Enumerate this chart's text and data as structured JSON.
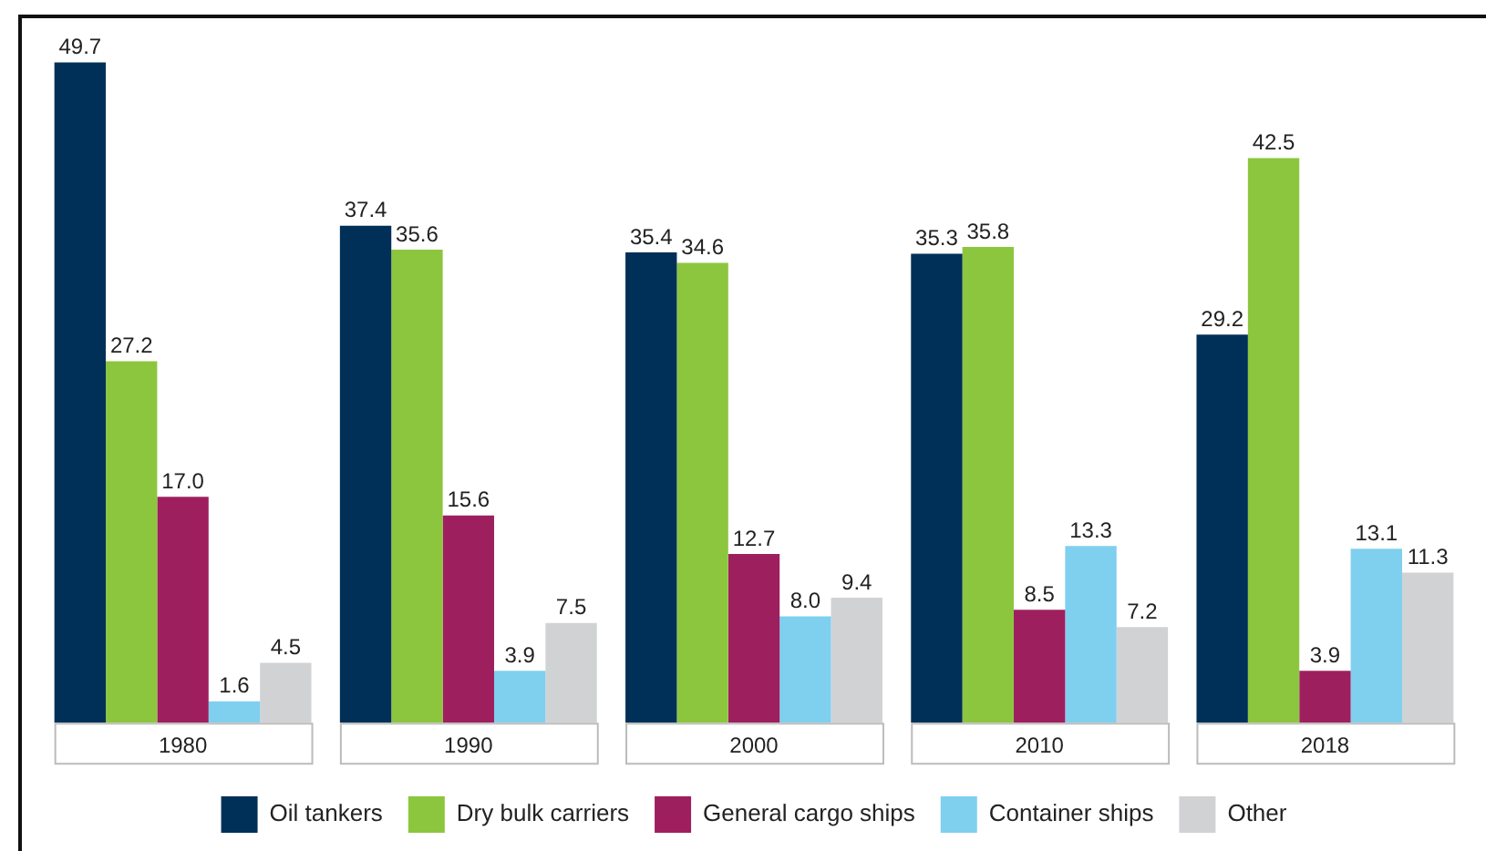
{
  "chart_data": {
    "type": "bar",
    "categories": [
      "1980",
      "1990",
      "2000",
      "2010",
      "2018"
    ],
    "series": [
      {
        "name": "Oil tankers",
        "color": "#003057",
        "values": [
          49.7,
          37.4,
          35.4,
          35.3,
          29.2
        ],
        "value_labels": [
          "49.7",
          "37.4",
          "35.4",
          "35.3",
          "29.2"
        ]
      },
      {
        "name": "Dry bulk carriers",
        "color": "#8cc63f",
        "values": [
          27.2,
          35.6,
          34.6,
          35.8,
          42.5
        ],
        "value_labels": [
          "27.2",
          "35.6",
          "34.6",
          "35.8",
          "42.5"
        ]
      },
      {
        "name": "General cargo ships",
        "color": "#9e1f5e",
        "values": [
          17.0,
          15.6,
          12.7,
          8.5,
          3.9
        ],
        "value_labels": [
          "17.0",
          "15.6",
          "12.7",
          "8.5",
          "3.9"
        ]
      },
      {
        "name": "Container ships",
        "color": "#7fcfef",
        "values": [
          1.6,
          3.9,
          8.0,
          13.3,
          13.1
        ],
        "value_labels": [
          "1.6",
          "3.9",
          "8.0",
          "13.3",
          "13.1"
        ]
      },
      {
        "name": "Other",
        "color": "#d1d2d4",
        "values": [
          4.5,
          7.5,
          9.4,
          7.2,
          11.3
        ],
        "value_labels": [
          "4.5",
          "7.5",
          "9.4",
          "7.2",
          "11.3"
        ]
      }
    ],
    "legend": "bottom",
    "grid": false,
    "tick_labels": "x"
  }
}
